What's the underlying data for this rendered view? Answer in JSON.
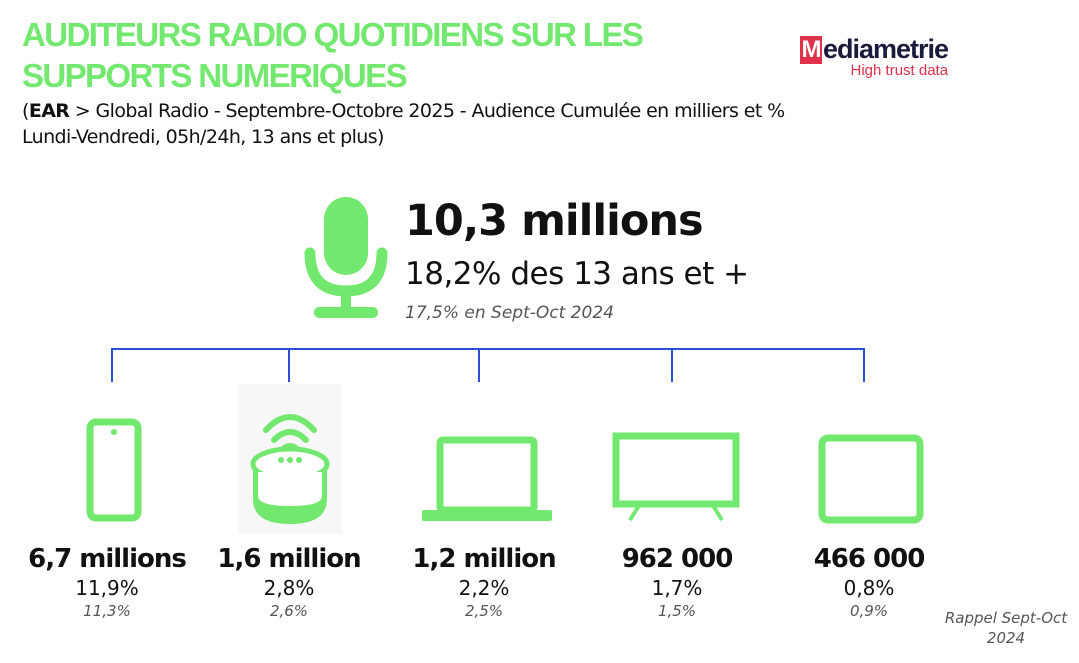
{
  "header": {
    "title_line1": "AUDITEURS RADIO QUOTIDIENS SUR LES",
    "title_line2": "SUPPORTS NUMERIQUES",
    "subtitle_bold": "EAR",
    "subtitle_line1": " > Global Radio - Septembre-Octobre 2025 - Audience Cumulée en milliers et %",
    "subtitle_line2": "Lundi-Vendredi, 05h/24h, 13 ans et plus)",
    "open_paren": "("
  },
  "logo": {
    "text": "Mediametrie",
    "tagline": "High trust data",
    "color": "#e0304a"
  },
  "total": {
    "icon": "microphone-icon",
    "value": "10,3 millions",
    "share": "18,2% des 13 ans et +",
    "previous": "17,5% en Sept-Oct 2024"
  },
  "colors": {
    "accent": "#72e86e",
    "connector": "#2b4fd8"
  },
  "devices": [
    {
      "icon": "smartphone-icon",
      "value": "6,7 millions",
      "share": "11,9%",
      "previous": "11,3%"
    },
    {
      "icon": "smart-speaker-icon",
      "value": "1,6 million",
      "share": "2,8%",
      "previous": "2,6%"
    },
    {
      "icon": "laptop-icon",
      "value": "1,2 million",
      "share": "2,2%",
      "previous": "2,5%"
    },
    {
      "icon": "tv-icon",
      "value": "962 000",
      "share": "1,7%",
      "previous": "1,5%"
    },
    {
      "icon": "tablet-icon",
      "value": "466 000",
      "share": "0,8%",
      "previous": "0,9%"
    }
  ],
  "footnote": {
    "line1": "Rappel Sept-Oct",
    "line2": "2024"
  }
}
